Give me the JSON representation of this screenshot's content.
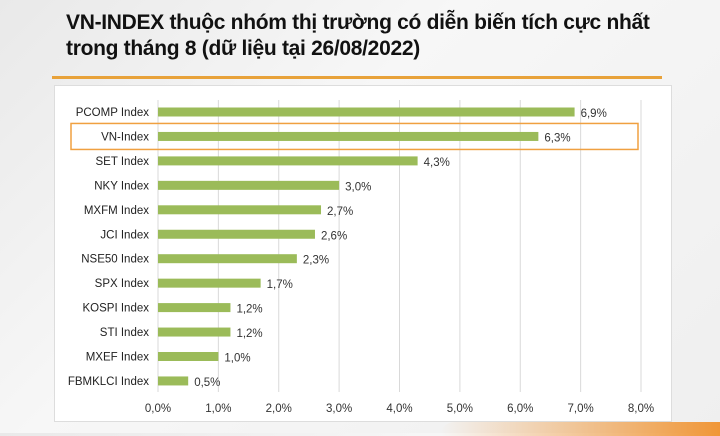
{
  "title": "VN-INDEX thuộc nhóm thị trường có diễn biến tích cực nhất trong tháng 8 (dữ liệu tại 26/08/2022)",
  "colors": {
    "bar": "#9bbb59",
    "highlight": "#f0a040",
    "rule": "#e8a23a",
    "grid": "#d9d9d9"
  },
  "chart_data": {
    "type": "bar",
    "orientation": "horizontal",
    "title": "VN-INDEX thuộc nhóm thị trường có diễn biến tích cực nhất trong tháng 8 (dữ liệu tại 26/08/2022)",
    "categories": [
      "PCOMP Index",
      "VN-Index",
      "SET Index",
      "NKY Index",
      "MXFM Index",
      "JCI Index",
      "NSE50 Index",
      "SPX Index",
      "KOSPI Index",
      "STI Index",
      "MXEF Index",
      "FBMKLCI Index"
    ],
    "values": [
      6.9,
      6.3,
      4.3,
      3.0,
      2.7,
      2.6,
      2.3,
      1.7,
      1.2,
      1.2,
      1.0,
      0.5
    ],
    "data_labels": [
      "6,9%",
      "6,3%",
      "4,3%",
      "3,0%",
      "2,7%",
      "2,6%",
      "2,3%",
      "1,7%",
      "1,2%",
      "1,2%",
      "1,0%",
      "0,5%"
    ],
    "xlim": [
      0,
      8
    ],
    "xticks": [
      0,
      1,
      2,
      3,
      4,
      5,
      6,
      7,
      8
    ],
    "xtick_labels": [
      "0,0%",
      "1,0%",
      "2,0%",
      "3,0%",
      "4,0%",
      "5,0%",
      "6,0%",
      "7,0%",
      "8,0%"
    ],
    "grid": "vertical",
    "highlighted_category": "VN-Index"
  }
}
